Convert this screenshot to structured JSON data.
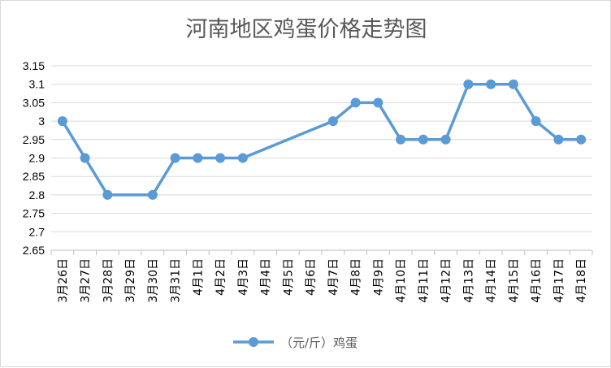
{
  "chart_data": {
    "type": "line",
    "title": "河南地区鸡蛋价格走势图",
    "categories": [
      "3月26日",
      "3月27日",
      "3月28日",
      "3月29日",
      "3月30日",
      "3月31日",
      "4月1日",
      "4月2日",
      "4月3日",
      "4月4日",
      "4月5日",
      "4月6日",
      "4月7日",
      "4月8日",
      "4月9日",
      "4月10日",
      "4月11日",
      "4月12日",
      "4月13日",
      "4月14日",
      "4月15日",
      "4月16日",
      "4月17日",
      "4月18日"
    ],
    "series": [
      {
        "name": "（元/斤）鸡蛋",
        "values": [
          3.0,
          2.9,
          2.8,
          null,
          2.8,
          2.9,
          2.9,
          2.9,
          2.9,
          null,
          null,
          null,
          3.0,
          3.05,
          3.05,
          2.95,
          2.95,
          2.95,
          3.1,
          3.1,
          3.1,
          3.0,
          2.95,
          2.95
        ]
      }
    ],
    "ylim": [
      2.65,
      3.15
    ],
    "yticks": [
      2.65,
      2.7,
      2.75,
      2.8,
      2.85,
      2.9,
      2.95,
      3.0,
      3.05,
      3.1,
      3.15
    ],
    "ytick_labels": [
      "2.65",
      "2.7",
      "2.75",
      "2.8",
      "2.85",
      "2.9",
      "2.95",
      "3",
      "3.05",
      "3.1",
      "3.15"
    ],
    "grid": true,
    "legend": "bottom",
    "colors": {
      "series": "#5b9bd5",
      "grid": "#d9d9d9",
      "axis": "#bfbfbf"
    }
  }
}
